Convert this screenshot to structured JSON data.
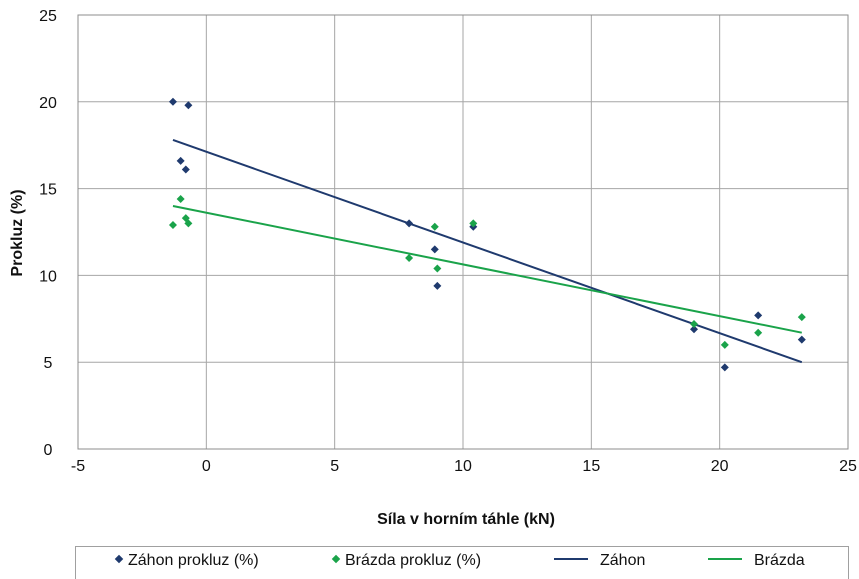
{
  "chart_data": {
    "type": "scatter",
    "xlabel": "Síla v horním táhle (kN)",
    "ylabel": "Prokluz (%)",
    "xlim": [
      -5,
      25
    ],
    "ylim": [
      0,
      25
    ],
    "xticks": [
      "-5",
      "0",
      "5",
      "10",
      "15",
      "20",
      "25"
    ],
    "yticks": [
      "0",
      "5",
      "10",
      "15",
      "20",
      "25"
    ],
    "grid": true,
    "legend_position": "bottom",
    "series": [
      {
        "name": "Záhon prokluz (%)",
        "kind": "scatter",
        "color": "#1f3a6e",
        "points": [
          [
            -1.3,
            20.0
          ],
          [
            -0.7,
            19.8
          ],
          [
            -1.0,
            16.6
          ],
          [
            -0.8,
            16.1
          ],
          [
            7.9,
            13.0
          ],
          [
            8.9,
            11.5
          ],
          [
            9.0,
            9.4
          ],
          [
            10.4,
            12.8
          ],
          [
            19.0,
            6.9
          ],
          [
            20.2,
            4.7
          ],
          [
            21.5,
            7.7
          ],
          [
            23.2,
            6.3
          ]
        ]
      },
      {
        "name": "Brázda prokluz (%)",
        "kind": "scatter",
        "color": "#1aa34a",
        "points": [
          [
            -1.3,
            12.9
          ],
          [
            -1.0,
            14.4
          ],
          [
            -0.8,
            13.3
          ],
          [
            -0.7,
            13.0
          ],
          [
            7.9,
            11.0
          ],
          [
            8.9,
            12.8
          ],
          [
            9.0,
            10.4
          ],
          [
            10.4,
            13.0
          ],
          [
            19.0,
            7.2
          ],
          [
            20.2,
            6.0
          ],
          [
            21.5,
            6.7
          ],
          [
            23.2,
            7.6
          ]
        ]
      },
      {
        "name": "Záhon",
        "kind": "line",
        "color": "#1f3a6e",
        "points": [
          [
            -1.3,
            17.8
          ],
          [
            23.2,
            5.0
          ]
        ]
      },
      {
        "name": "Brázda",
        "kind": "line",
        "color": "#1aa34a",
        "points": [
          [
            -1.3,
            14.0
          ],
          [
            23.2,
            6.7
          ]
        ]
      }
    ]
  }
}
